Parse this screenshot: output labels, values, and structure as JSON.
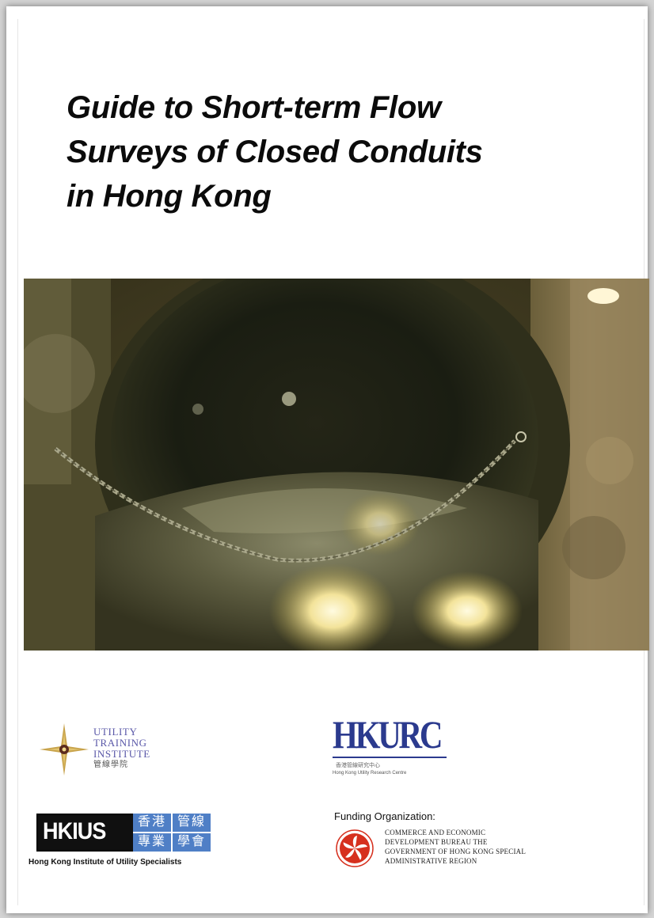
{
  "cover": {
    "title_lines": [
      "Guide to Short-term Flow",
      "Surveys of Closed Conduits",
      "in Hong Kong"
    ]
  },
  "logos": {
    "uti": {
      "lines": [
        "UTILITY",
        "TRAINING",
        "INSTITUTE"
      ],
      "chinese": "管線學院"
    },
    "hkurc": {
      "name": "HKURC",
      "chinese": "香港管線研究中心",
      "english": "Hong Kong Utility Research Centre"
    },
    "hkius": {
      "name": "HKIUS",
      "chinese": [
        "香港",
        "管線",
        "專業",
        "學會"
      ],
      "english": "Hong Kong Institute of Utility Specialists"
    }
  },
  "funding": {
    "label": "Funding Organization:",
    "lines": [
      "COMMERCE AND ECONOMIC",
      "DEVELOPMENT BUREAU THE",
      "GOVERNMENT OF HONG KONG SPECIAL",
      "ADMINISTRATIVE REGION"
    ]
  },
  "colors": {
    "title": "#0b0b0b",
    "uti_text": "#5a58a8",
    "hkurc_blue": "#2b3a8e",
    "hkius_blue": "#4f7fc6",
    "emblem_red": "#d6301e"
  },
  "icons": {
    "uti_mark": "compass-star-icon",
    "emblem": "bauhinia-emblem-icon"
  }
}
